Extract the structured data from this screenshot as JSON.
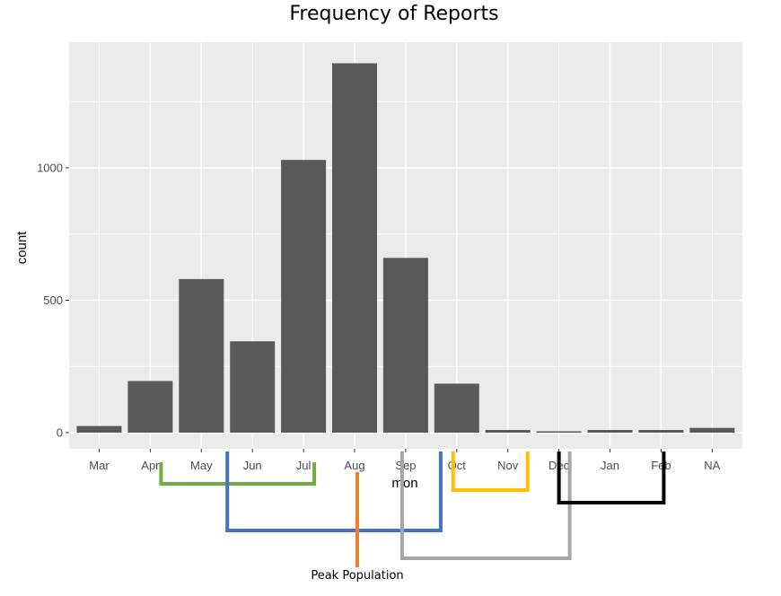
{
  "chart_data": {
    "type": "bar",
    "title": "Frequency of Reports",
    "xlabel": "mon",
    "ylabel": "count",
    "categories": [
      "Mar",
      "Apr",
      "May",
      "Jun",
      "Jul",
      "Aug",
      "Sep",
      "Oct",
      "Nov",
      "Dec",
      "Jan",
      "Feb",
      "NA"
    ],
    "values": [
      25,
      195,
      580,
      345,
      1030,
      1395,
      660,
      185,
      10,
      5,
      10,
      10,
      18
    ],
    "ylim": [
      0,
      1400
    ],
    "yticks": [
      0,
      500,
      1000
    ],
    "yticks_labels": [
      "0",
      "500",
      "1000"
    ],
    "grid": true,
    "colors": {
      "bar": "#595959",
      "panel": "#ebebeb",
      "grid": "#ffffff",
      "green": "#70ad47",
      "blue": "#4472c4",
      "orange": "#ed7d31",
      "gold": "#ffc000",
      "gray": "#a5a5a5",
      "black": "#000000"
    },
    "annotations": [
      {
        "type": "bracket",
        "color": "green",
        "from": "Apr",
        "to": "Jul"
      },
      {
        "type": "bracket",
        "color": "blue",
        "from": "Jun",
        "to": "Sep"
      },
      {
        "type": "pointer",
        "color": "orange",
        "at": "Aug",
        "label": "Peak Population"
      },
      {
        "type": "bracket",
        "color": "gray",
        "from": "Sep",
        "to": "Dec"
      },
      {
        "type": "bracket",
        "color": "gold",
        "from": "Oct",
        "to": "Nov"
      },
      {
        "type": "bracket",
        "color": "black",
        "from": "Dec",
        "to": "Feb"
      }
    ]
  }
}
